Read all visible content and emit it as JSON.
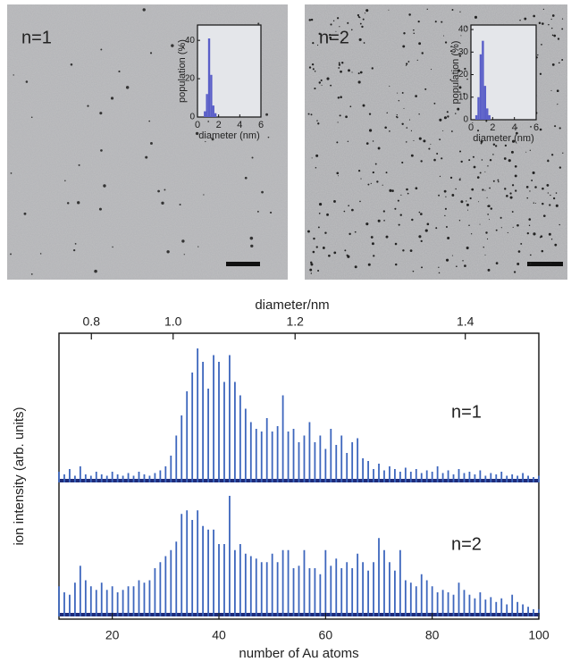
{
  "chart_data": [
    {
      "type": "histogram",
      "label": "n=1",
      "xlabel": "diameter (nm)",
      "ylabel": "population (%)",
      "bins": [
        0.6,
        0.8,
        1.0,
        1.2,
        1.4,
        1.6,
        1.8
      ],
      "values": [
        3,
        12,
        41,
        22,
        6,
        2
      ],
      "color": "#5a5fc8",
      "xlim": [
        0,
        6
      ],
      "xticks": [
        0,
        2,
        4,
        6
      ],
      "ylim": [
        0,
        48
      ],
      "yticks": [
        0,
        20,
        40
      ]
    },
    {
      "type": "histogram",
      "label": "n=2",
      "xlabel": "diameter (nm)",
      "ylabel": "population (%)",
      "bins": [
        0.4,
        0.6,
        0.8,
        1.0,
        1.2,
        1.4,
        1.6,
        1.8
      ],
      "values": [
        2,
        10,
        29,
        35,
        15,
        5,
        2
      ],
      "color": "#5a5fc8",
      "xlim": [
        0,
        6
      ],
      "xticks": [
        0,
        2,
        4,
        6
      ],
      "ylim": [
        0,
        42
      ],
      "yticks": [
        0,
        10,
        20,
        30,
        40
      ]
    },
    {
      "type": "spectrum",
      "xlabel": "number of Au atoms",
      "ylabel": "ion intensity (arb. units)",
      "x2label": "diameter/nm",
      "x": [
        10,
        11,
        12,
        13,
        14,
        15,
        16,
        17,
        18,
        19,
        20,
        21,
        22,
        23,
        24,
        25,
        26,
        27,
        28,
        29,
        30,
        31,
        32,
        33,
        34,
        35,
        36,
        37,
        38,
        39,
        40,
        41,
        42,
        43,
        44,
        45,
        46,
        47,
        48,
        49,
        50,
        51,
        52,
        53,
        54,
        55,
        56,
        57,
        58,
        59,
        60,
        61,
        62,
        63,
        64,
        65,
        66,
        67,
        68,
        69,
        70,
        71,
        72,
        73,
        74,
        75,
        76,
        77,
        78,
        79,
        80,
        81,
        82,
        83,
        84,
        85,
        86,
        87,
        88,
        89,
        90,
        91,
        92,
        93,
        94,
        95,
        96,
        97,
        98,
        99,
        100
      ],
      "series": [
        {
          "name": "n=1",
          "color": "#3d66bd",
          "values": [
            8,
            6,
            10,
            5,
            12,
            6,
            5,
            8,
            6,
            5,
            8,
            6,
            5,
            7,
            5,
            8,
            6,
            5,
            7,
            9,
            12,
            20,
            35,
            50,
            68,
            82,
            100,
            90,
            70,
            95,
            90,
            75,
            95,
            75,
            65,
            55,
            45,
            40,
            38,
            48,
            38,
            42,
            65,
            38,
            40,
            30,
            35,
            45,
            30,
            35,
            25,
            40,
            28,
            35,
            22,
            30,
            33,
            18,
            16,
            10,
            14,
            9,
            12,
            10,
            8,
            11,
            8,
            10,
            7,
            9,
            8,
            12,
            7,
            9,
            6,
            10,
            7,
            8,
            6,
            9,
            5,
            7,
            6,
            8,
            5,
            6,
            5,
            7,
            5,
            4,
            5
          ]
        },
        {
          "name": "n=2",
          "color": "#3d66bd",
          "values": [
            25,
            20,
            18,
            28,
            42,
            30,
            25,
            22,
            28,
            22,
            25,
            20,
            22,
            25,
            25,
            30,
            28,
            30,
            40,
            45,
            50,
            55,
            62,
            85,
            88,
            80,
            88,
            75,
            72,
            72,
            60,
            60,
            100,
            55,
            60,
            52,
            50,
            48,
            45,
            45,
            52,
            45,
            55,
            55,
            40,
            42,
            55,
            40,
            40,
            35,
            55,
            42,
            48,
            40,
            45,
            40,
            52,
            45,
            38,
            45,
            65,
            55,
            45,
            38,
            55,
            30,
            28,
            25,
            35,
            30,
            25,
            20,
            22,
            20,
            18,
            28,
            22,
            18,
            15,
            20,
            14,
            16,
            12,
            15,
            10,
            18,
            12,
            10,
            8,
            6,
            6
          ]
        }
      ],
      "xlim": [
        10,
        100
      ],
      "xticks": [
        20,
        40,
        60,
        80,
        100
      ],
      "ylim": [
        0,
        100
      ],
      "x2lim": [
        0.683,
        1.471
      ],
      "x2scale": "cubic",
      "x2ticks": [
        0.8,
        {
          "value": 1,
          "label": "1.0"
        },
        1.2,
        1.4
      ]
    }
  ]
}
